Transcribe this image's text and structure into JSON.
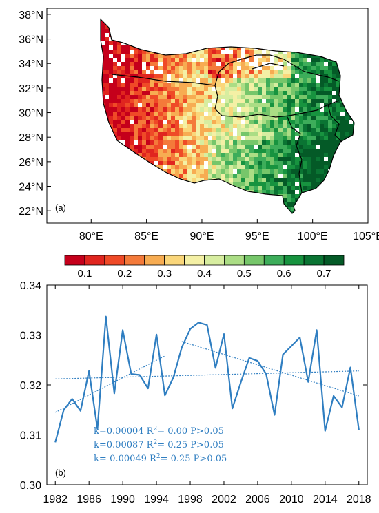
{
  "chart_data": [
    {
      "type": "heatmap",
      "panel_label": "(a)",
      "lat_ticks": [
        "38°N",
        "36°N",
        "34°N",
        "32°N",
        "30°N",
        "28°N",
        "26°N",
        "24°N",
        "22°N"
      ],
      "lon_ticks": [
        "80°E",
        "85°E",
        "90°E",
        "95°E",
        "100°E",
        "105°E"
      ],
      "lat_range": [
        21,
        38.5
      ],
      "lon_range": [
        76,
        105
      ],
      "colorbar": {
        "labels": [
          "0.1",
          "0.2",
          "0.3",
          "0.4",
          "0.5",
          "0.6",
          "0.7"
        ],
        "colors": [
          "#c5001b",
          "#e0251f",
          "#ef4a27",
          "#f47a3a",
          "#f7ac52",
          "#fad67a",
          "#f4f0a5",
          "#d7eda0",
          "#abdd85",
          "#76c66a",
          "#3dad5a",
          "#17933f",
          "#0a7433",
          "#045a27"
        ]
      }
    },
    {
      "type": "line",
      "panel_label": "(b)",
      "x": [
        1982,
        1983,
        1984,
        1985,
        1986,
        1987,
        1988,
        1989,
        1990,
        1991,
        1992,
        1993,
        1994,
        1995,
        1996,
        1997,
        1998,
        1999,
        2000,
        2001,
        2002,
        2003,
        2004,
        2005,
        2006,
        2007,
        2008,
        2009,
        2010,
        2011,
        2012,
        2013,
        2014,
        2015,
        2016,
        2017,
        2018
      ],
      "series": [
        {
          "values": [
            0.3085,
            0.315,
            0.3172,
            0.3148,
            0.3228,
            0.3112,
            0.3337,
            0.3183,
            0.331,
            0.3222,
            0.322,
            0.3193,
            0.3301,
            0.3179,
            0.3215,
            0.3275,
            0.3312,
            0.3325,
            0.332,
            0.3234,
            0.3302,
            0.3153,
            0.3205,
            0.3254,
            0.3248,
            0.3222,
            0.314,
            0.3261,
            0.3278,
            0.3295,
            0.3206,
            0.331,
            0.3108,
            0.3178,
            0.3155,
            0.3235,
            0.311
          ]
        }
      ],
      "trend_lines": [
        {
          "x": [
            1982,
            2018
          ],
          "y": [
            0.3212,
            0.3228
          ]
        },
        {
          "x": [
            1982,
            1995
          ],
          "y": [
            0.3145,
            0.3258
          ]
        },
        {
          "x": [
            1997,
            2018
          ],
          "y": [
            0.3287,
            0.3178
          ]
        }
      ],
      "annotations": [
        {
          "k": "k=0.00004",
          "r2": "= 0.00",
          "p": "P>0.05"
        },
        {
          "k": "k=0.00087",
          "r2": "= 0.25",
          "p": "P>0.05"
        },
        {
          "k": "k=-0.00049",
          "r2": "= 0.25",
          "p": "P>0.05"
        }
      ],
      "r_label": "R",
      "r_sup": "2",
      "x_ticks": [
        "1982",
        "1986",
        "1990",
        "1994",
        "1998",
        "2002",
        "2006",
        "2010",
        "2014",
        "2018"
      ],
      "y_ticks": [
        "0.30",
        "0.31",
        "0.32",
        "0.33",
        "0.34"
      ],
      "ylim": [
        0.3,
        0.34
      ],
      "xlim": [
        1981,
        2019
      ],
      "line_color": "#2f7ec1"
    }
  ]
}
